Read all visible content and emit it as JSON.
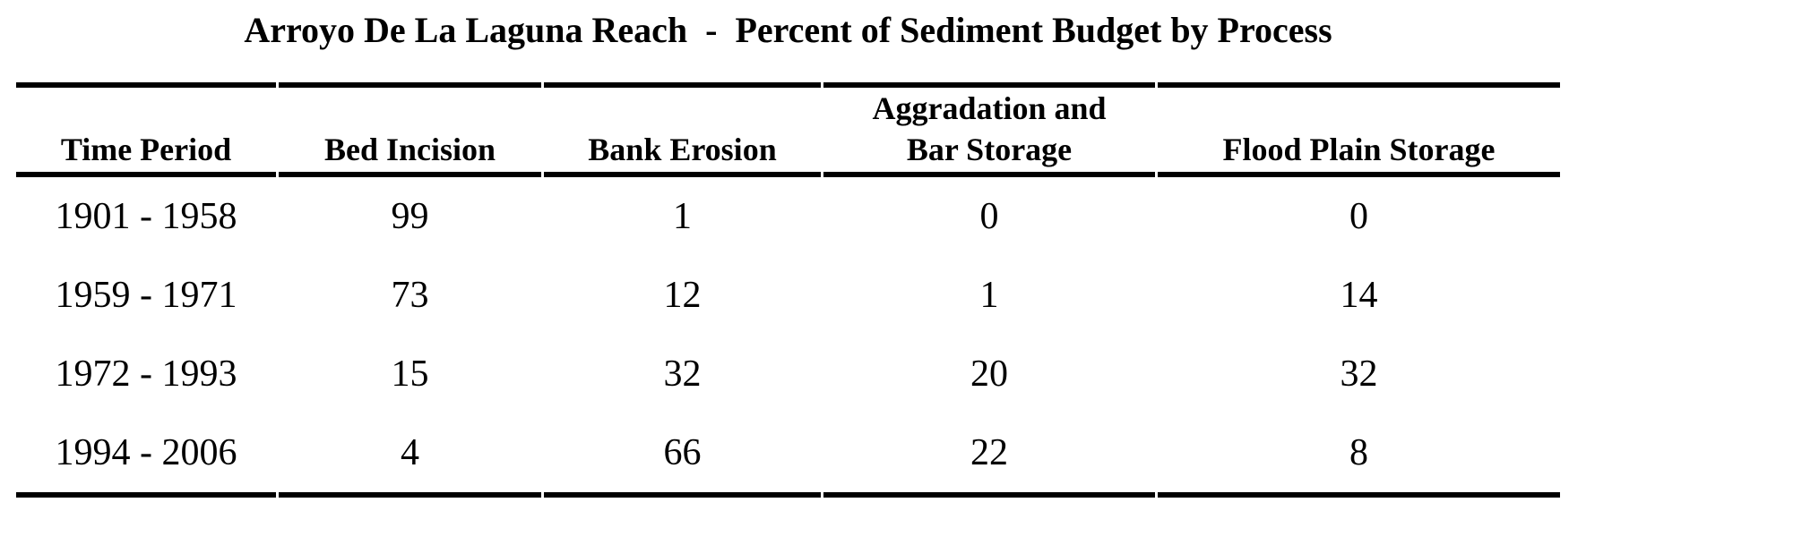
{
  "title": "Arroyo De La Laguna Reach  -  Percent of Sediment Budget by Process",
  "table": {
    "columns": [
      "Time Period",
      "Bed Incision",
      "Bank Erosion",
      "Aggradation and\nBar Storage",
      "Flood Plain Storage"
    ],
    "rows": [
      {
        "period": "1901 - 1958",
        "values": [
          "99",
          "1",
          "0",
          "0"
        ]
      },
      {
        "period": "1959 - 1971",
        "values": [
          "73",
          "12",
          "1",
          "14"
        ]
      },
      {
        "period": "1972 - 1993",
        "values": [
          "15",
          "32",
          "20",
          "32"
        ]
      },
      {
        "period": "1994 - 2006",
        "values": [
          "4",
          "66",
          "22",
          "8"
        ]
      }
    ]
  },
  "chart_data": {
    "type": "table",
    "title": "Arroyo De La Laguna Reach  -  Percent of Sediment Budget by Process",
    "categories": [
      "1901 - 1958",
      "1959 - 1971",
      "1972 - 1993",
      "1994 - 2006"
    ],
    "series": [
      {
        "name": "Bed Incision",
        "values": [
          99,
          73,
          15,
          4
        ]
      },
      {
        "name": "Bank Erosion",
        "values": [
          1,
          12,
          32,
          66
        ]
      },
      {
        "name": "Aggradation and Bar Storage",
        "values": [
          0,
          1,
          20,
          22
        ]
      },
      {
        "name": "Flood Plain Storage",
        "values": [
          0,
          14,
          32,
          8
        ]
      }
    ]
  },
  "colors": {
    "text": "#000000",
    "rule": "#000000",
    "background": "#ffffff"
  }
}
